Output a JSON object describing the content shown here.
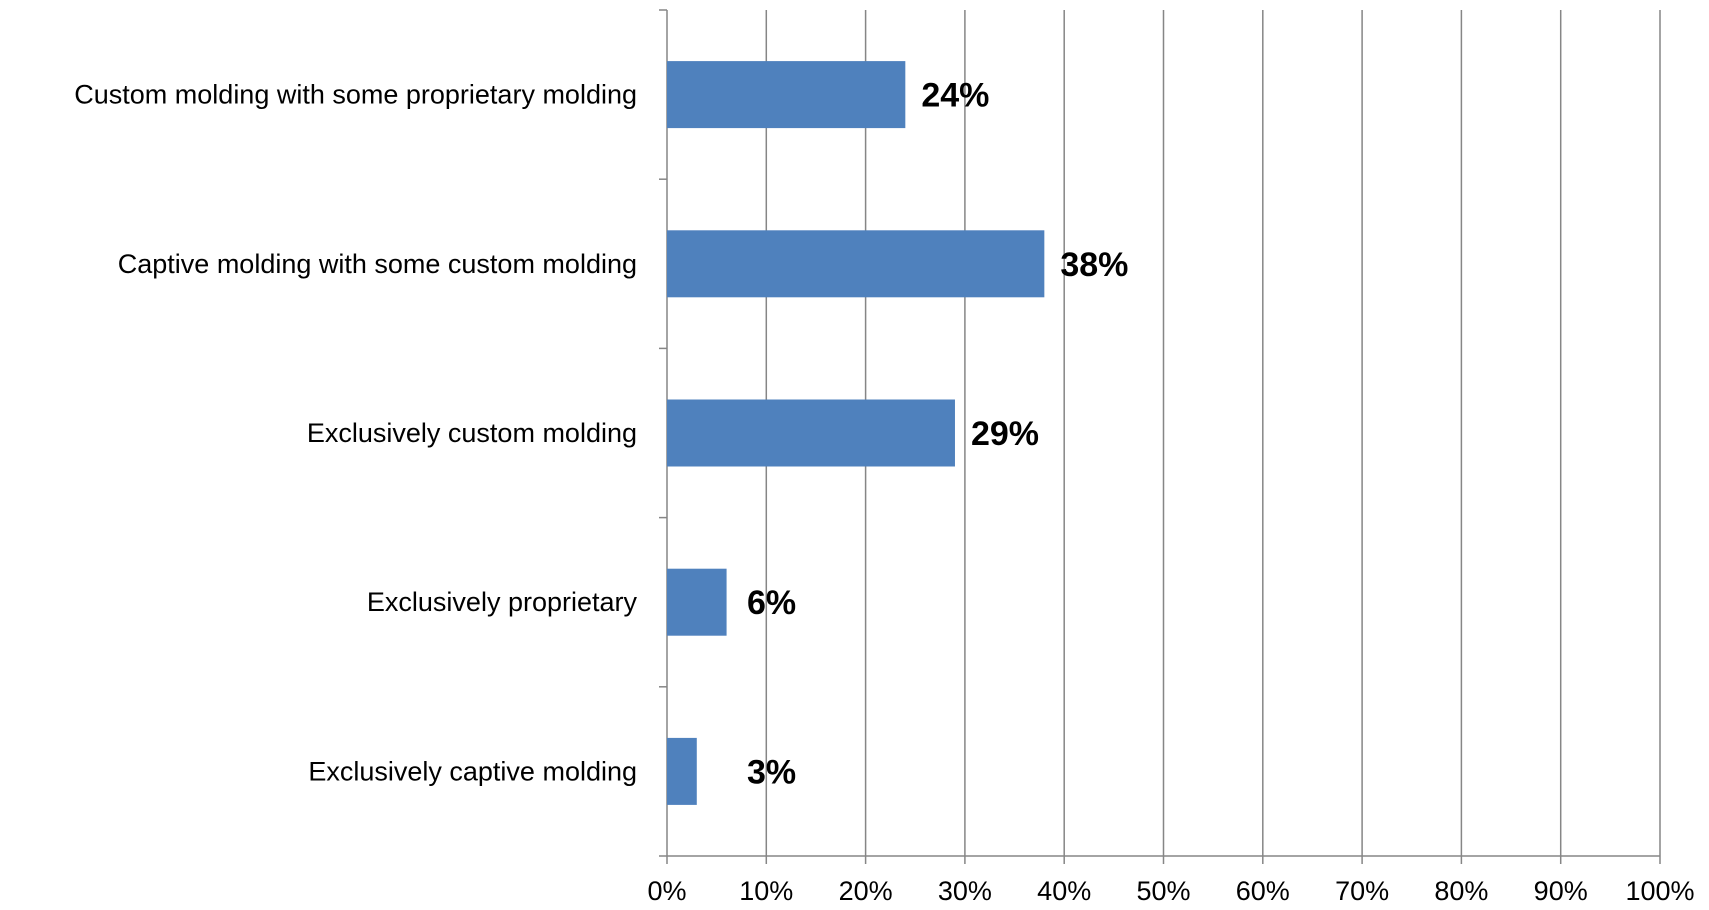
{
  "chart_data": {
    "type": "bar",
    "orientation": "horizontal",
    "categories": [
      "Custom molding with some proprietary molding",
      "Captive molding with some custom molding",
      "Exclusively custom molding",
      "Exclusively proprietary",
      "Exclusively captive molding"
    ],
    "values": [
      24,
      38,
      29,
      6,
      3
    ],
    "data_labels": [
      "24%",
      "38%",
      "29%",
      "6%",
      "3%"
    ],
    "xlim": [
      0,
      100
    ],
    "x_ticks": [
      "0%",
      "10%",
      "20%",
      "30%",
      "40%",
      "50%",
      "60%",
      "70%",
      "80%",
      "90%",
      "100%"
    ],
    "grid": "vertical",
    "bar_color": "#4f81bd",
    "grid_color": "#868686",
    "title": "",
    "xlabel": "",
    "ylabel": ""
  }
}
